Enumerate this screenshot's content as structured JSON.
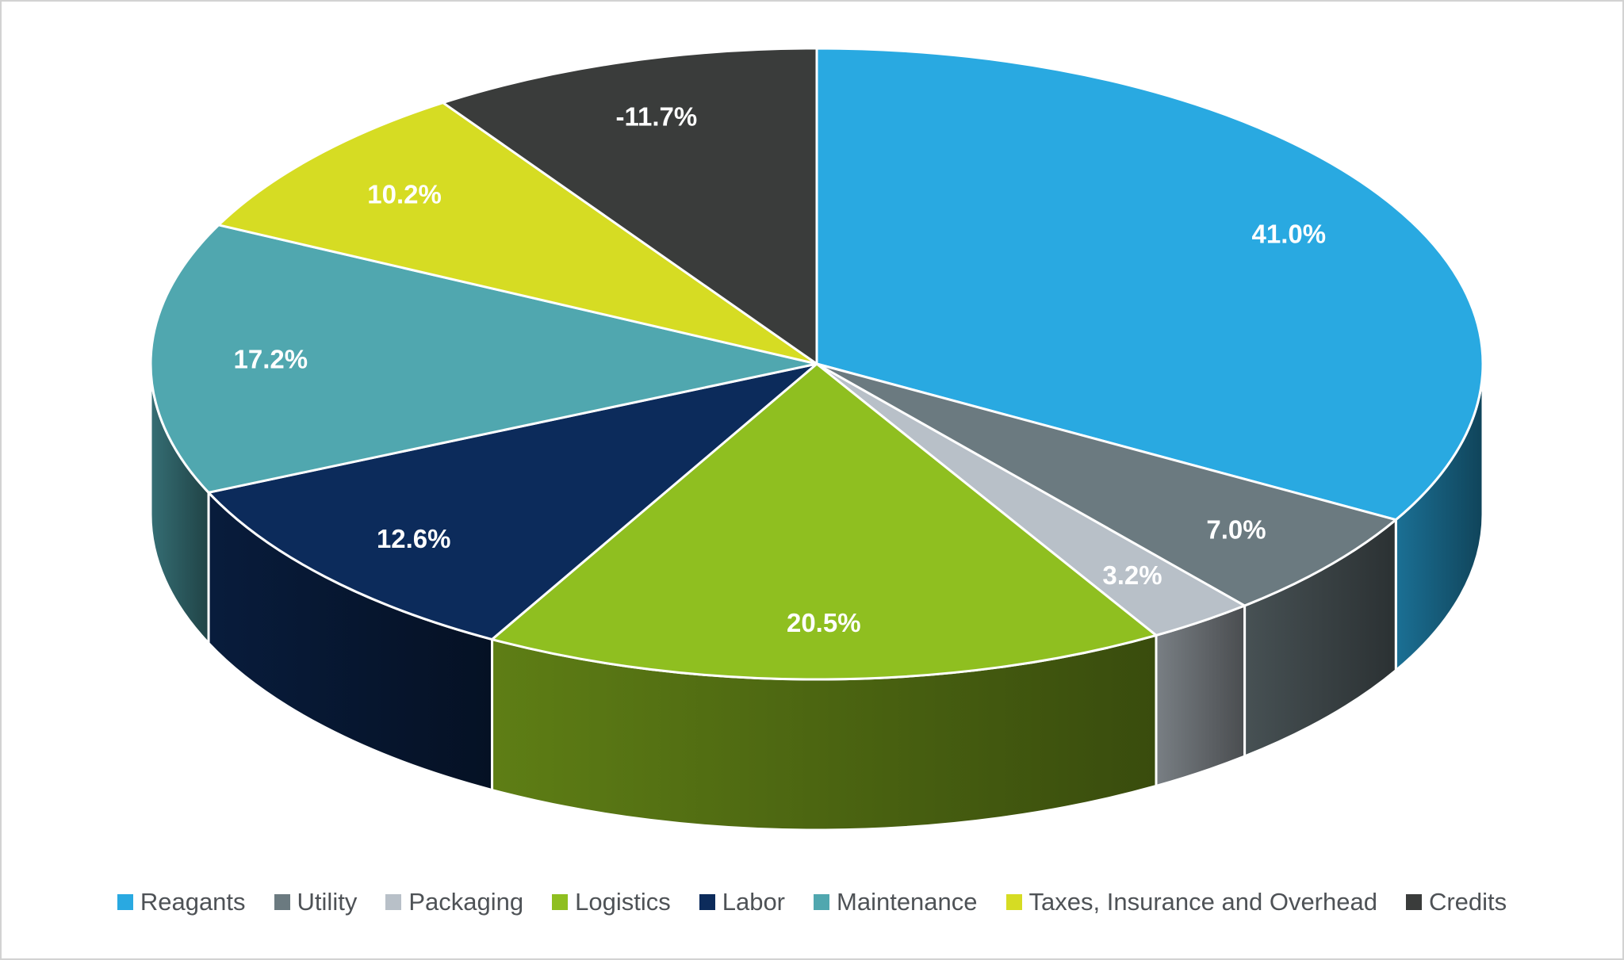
{
  "chart_data": {
    "type": "pie",
    "style": "3d",
    "title": "",
    "categories": [
      "Reagants",
      "Utility",
      "Packaging",
      "Logistics",
      "Labor",
      "Maintenance",
      "Taxes, Insurance and Overhead",
      "Credits"
    ],
    "values": [
      41.0,
      7.0,
      3.2,
      20.5,
      12.6,
      17.2,
      10.2,
      -11.7
    ],
    "data_labels": [
      "41.0%",
      "7.0%",
      "3.2%",
      "20.5%",
      "12.6%",
      "17.2%",
      "10.2%",
      "-11.7%"
    ],
    "colors": [
      "#29A9E1",
      "#6B7A80",
      "#B8C0C8",
      "#8FBF20",
      "#0C2B5B",
      "#50A7AF",
      "#D6DC23",
      "#3A3C3B"
    ],
    "data_label_color": "#FFFFFF",
    "legend_position": "bottom",
    "legend_text_color": "#4E5256",
    "background_color": "#FFFFFF",
    "border_color": "#D2D2D2",
    "start_angle_deg": 0,
    "direction": "clockwise",
    "angle_basis": "sum_of_absolute_values"
  }
}
